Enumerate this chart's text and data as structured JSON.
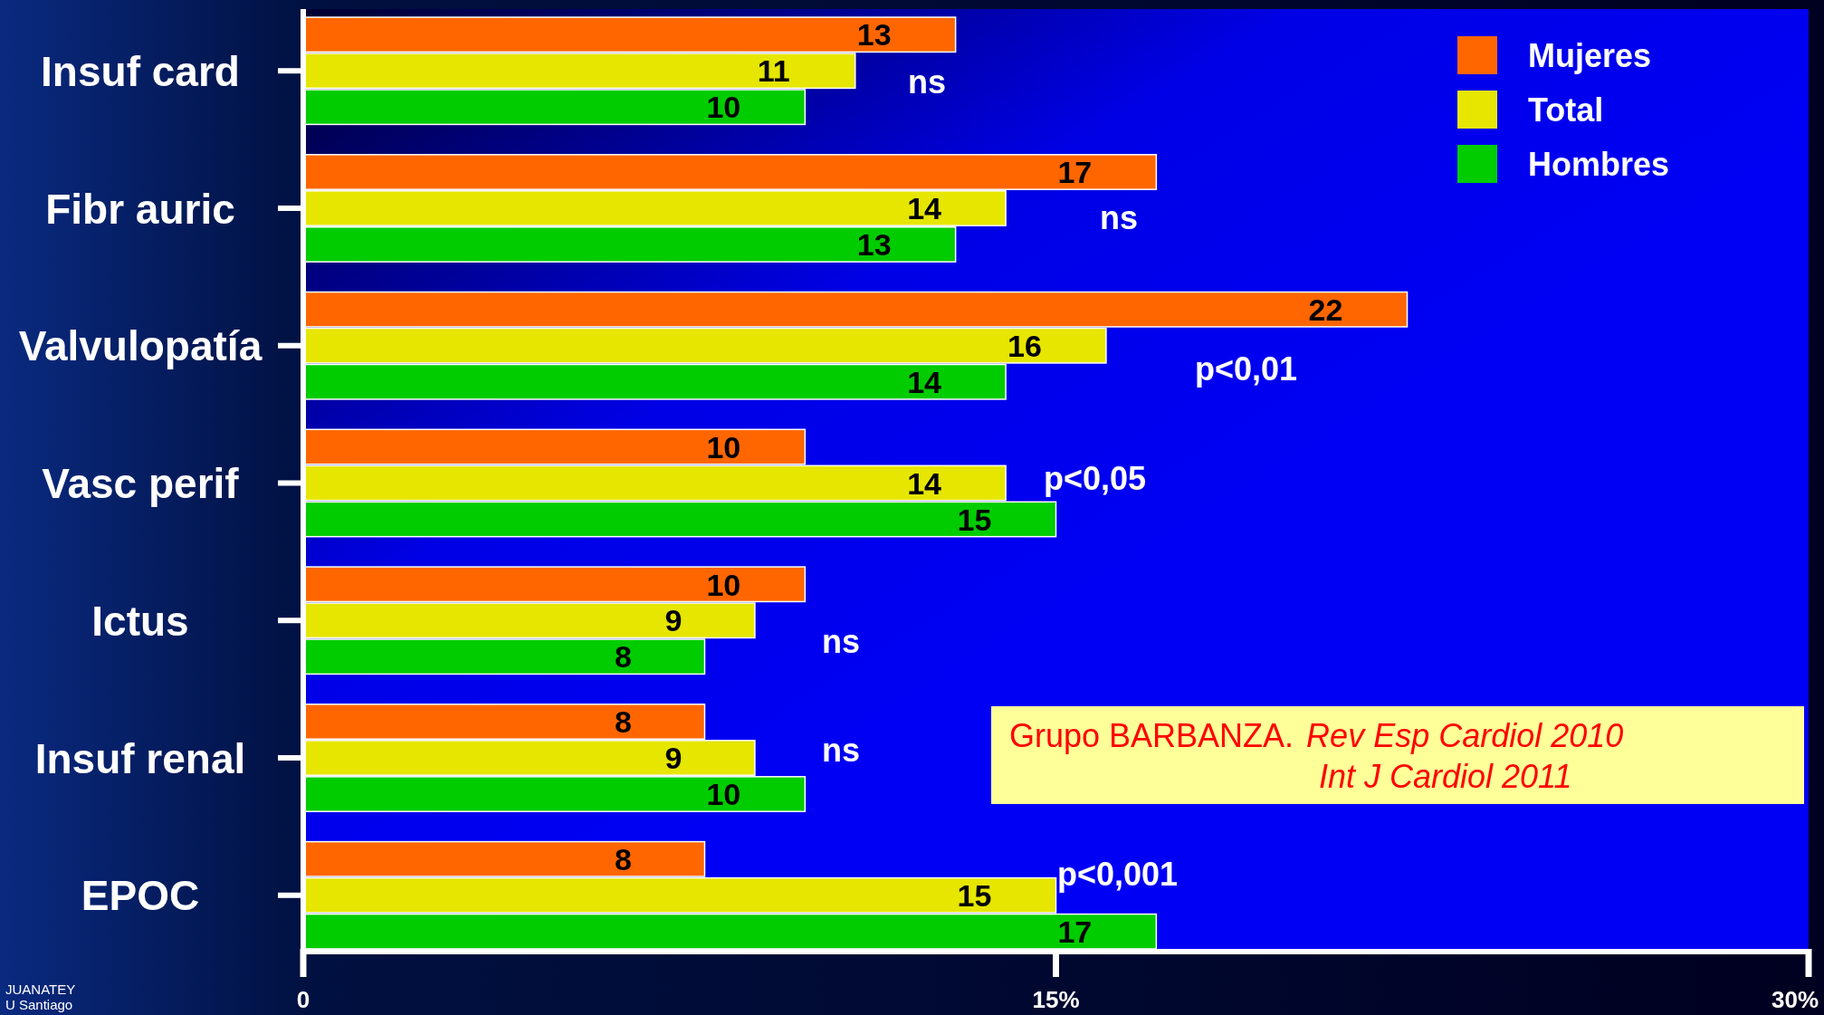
{
  "chart_data": {
    "type": "bar",
    "orientation": "horizontal",
    "categories": [
      "Insuf card",
      "Fibr auric",
      "Valvulopatía",
      "Vasc perif",
      "Ictus",
      "Insuf renal",
      "EPOC"
    ],
    "series": [
      {
        "name": "Mujeres",
        "color": "#ff6600",
        "values": [
          13,
          17,
          22,
          10,
          10,
          8,
          8
        ]
      },
      {
        "name": "Total",
        "color": "#e6e600",
        "values": [
          11,
          14,
          16,
          14,
          9,
          9,
          15
        ]
      },
      {
        "name": "Hombres",
        "color": "#00cc00",
        "values": [
          10,
          13,
          14,
          15,
          8,
          10,
          17
        ]
      }
    ],
    "xlim": [
      0,
      30
    ],
    "xticks": [
      0,
      {
        "value": 15,
        "label": "15%"
      },
      {
        "value": 30,
        "label": "30%"
      }
    ],
    "data_labels": true,
    "legend": "top right",
    "grid": false,
    "annotations": [
      "ns",
      "ns",
      "p<0,01",
      "p<0,05",
      "ns",
      "ns",
      "p<0,001",
      "Grupo BARBANZA. Rev Esp Cardiol 2010\nInt J Cardiol 2011",
      "JUANATEY\nU Santiago"
    ]
  }
}
